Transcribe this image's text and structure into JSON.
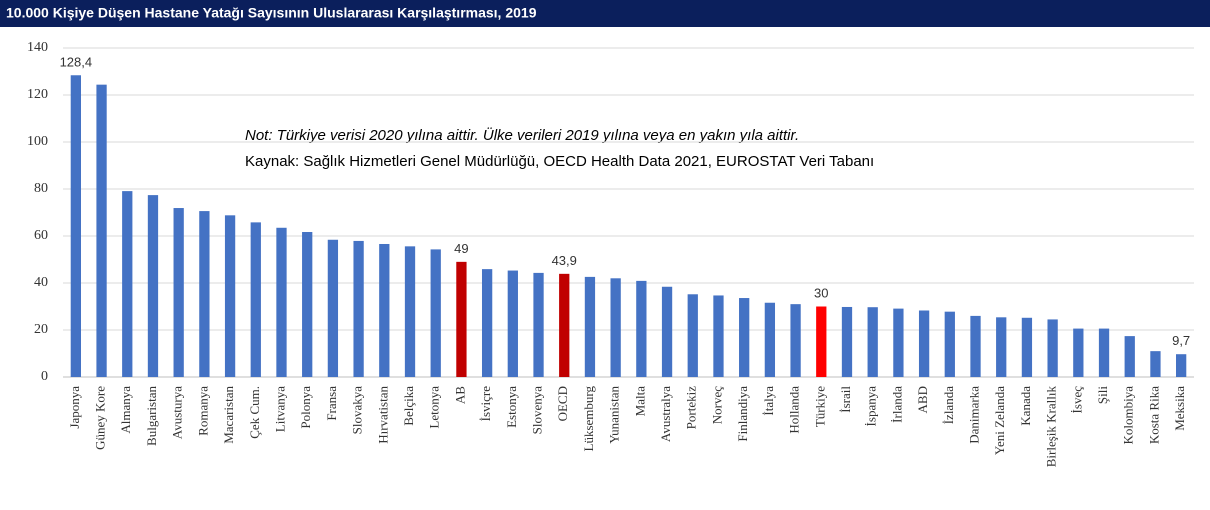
{
  "chart_data": {
    "type": "bar",
    "title": "10.000 Kişiye Düşen Hastane Yatağı Sayısının Uluslararası Karşılaştırması, 2019",
    "annotations": [
      "Not: Türkiye verisi 2020 yılına aittir. Ülke verileri 2019 yılına veya en yakın yıla aittir.",
      "Kaynak: Sağlık Hizmetleri Genel Müdürlüğü, OECD Health Data 2021,  EUROSTAT Veri Tabanı"
    ],
    "categories": [
      "Japonya",
      "Güney Kore",
      "Almanya",
      "Bulgaristan",
      "Avusturya",
      "Romanya",
      "Macaristan",
      "Çek Cum.",
      "Litvanya",
      "Polonya",
      "Fransa",
      "Slovakya",
      "Hırvatistan",
      "Belçika",
      "Letonya",
      "AB",
      "İsviçre",
      "Estonya",
      "Slovenya",
      "OECD",
      "Lüksemburg",
      "Yunanistan",
      "Malta",
      "Avustralya",
      "Portekiz",
      "Norveç",
      "Finlandiya",
      "İtalya",
      "Hollanda",
      "Türkiye",
      "İsrail",
      "İspanya",
      "İrlanda",
      "ABD",
      "İzlanda",
      "Danimarka",
      "Yeni Zelanda",
      "Kanada",
      "Birleşik Krallık",
      "İsveç",
      "Şili",
      "Kolombiya",
      "Kosta Rika",
      "Meksika"
    ],
    "values": [
      128.4,
      124.4,
      79.1,
      77.4,
      71.9,
      70.6,
      68.8,
      65.8,
      63.5,
      61.7,
      58.4,
      57.9,
      56.6,
      55.6,
      54.3,
      49,
      45.9,
      45.3,
      44.3,
      43.9,
      42.6,
      42.0,
      40.9,
      38.4,
      35.2,
      34.7,
      33.6,
      31.6,
      31.0,
      30,
      29.8,
      29.7,
      29.1,
      28.3,
      27.8,
      26.0,
      25.4,
      25.2,
      24.5,
      20.6,
      20.6,
      17.4,
      11.0,
      9.7
    ],
    "value_labels": [
      "128,4",
      null,
      null,
      null,
      null,
      null,
      null,
      null,
      null,
      null,
      null,
      null,
      null,
      null,
      null,
      "49",
      null,
      null,
      null,
      "43,9",
      null,
      null,
      null,
      null,
      null,
      null,
      null,
      null,
      null,
      "30",
      null,
      null,
      null,
      null,
      null,
      null,
      null,
      null,
      null,
      null,
      null,
      null,
      null,
      "9,7"
    ],
    "colors": [
      "#4472c4",
      "#4472c4",
      "#4472c4",
      "#4472c4",
      "#4472c4",
      "#4472c4",
      "#4472c4",
      "#4472c4",
      "#4472c4",
      "#4472c4",
      "#4472c4",
      "#4472c4",
      "#4472c4",
      "#4472c4",
      "#4472c4",
      "#c00000",
      "#4472c4",
      "#4472c4",
      "#4472c4",
      "#c00000",
      "#4472c4",
      "#4472c4",
      "#4472c4",
      "#4472c4",
      "#4472c4",
      "#4472c4",
      "#4472c4",
      "#4472c4",
      "#4472c4",
      "#ff0000",
      "#4472c4",
      "#4472c4",
      "#4472c4",
      "#4472c4",
      "#4472c4",
      "#4472c4",
      "#4472c4",
      "#4472c4",
      "#4472c4",
      "#4472c4",
      "#4472c4",
      "#4472c4",
      "#4472c4",
      "#4472c4"
    ],
    "ylim": [
      0,
      140
    ],
    "yticks": [
      0,
      20,
      40,
      60,
      80,
      100,
      120,
      140
    ],
    "grid": true
  }
}
